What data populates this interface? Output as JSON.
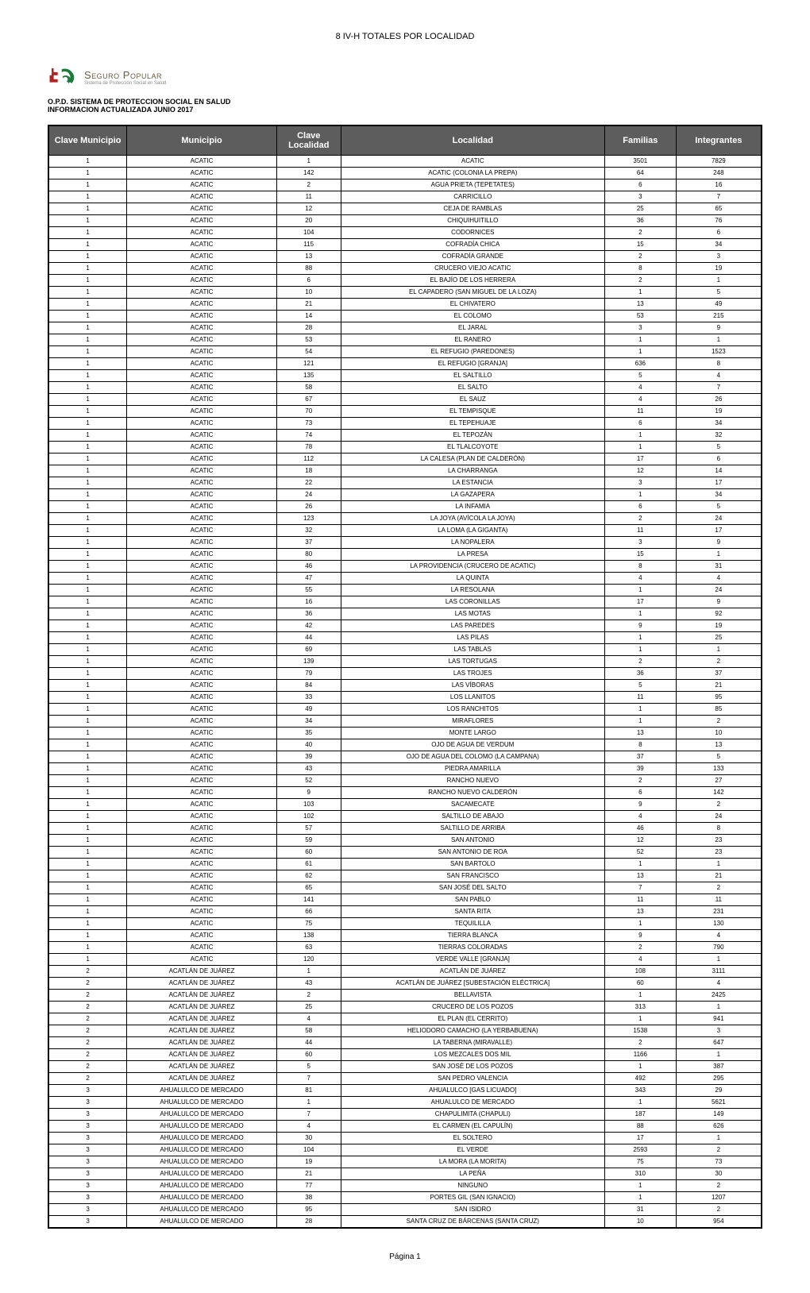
{
  "doc_title": "8 IV-H TOTALES POR LOCALIDAD",
  "logo": {
    "text": "Seguro Popular",
    "subtext": "Sistema de Protección Social en Salud"
  },
  "org": {
    "line1": "O.P.D. SISTEMA DE PROTECCION SOCIAL EN SALUD",
    "line2": "INFORMACION ACTUALIZADA JUNIO 2017"
  },
  "headers": {
    "clave_municipio": "Clave Municipio",
    "municipio": "Municipio",
    "clave_localidad_l1": "Clave",
    "clave_localidad_l2": "Localidad",
    "localidad": "Localidad",
    "familias": "Familias",
    "integrantes": "Integrantes"
  },
  "footer": "Página 1",
  "rows": [
    [
      "1",
      "ACATIC",
      "1",
      "ACATIC",
      "3501",
      "7829"
    ],
    [
      "1",
      "ACATIC",
      "142",
      "ACATIC (COLONIA LA PREPA)",
      "64",
      "248"
    ],
    [
      "1",
      "ACATIC",
      "2",
      "AGUA PRIETA (TEPETATES)",
      "6",
      "16"
    ],
    [
      "1",
      "ACATIC",
      "11",
      "CARRICILLO",
      "3",
      "7"
    ],
    [
      "1",
      "ACATIC",
      "12",
      "CEJA DE RAMBLAS",
      "25",
      "65"
    ],
    [
      "1",
      "ACATIC",
      "20",
      "CHIQUIHUITILLO",
      "36",
      "76"
    ],
    [
      "1",
      "ACATIC",
      "104",
      "CODORNICES",
      "2",
      "6"
    ],
    [
      "1",
      "ACATIC",
      "115",
      "COFRADÍA CHICA",
      "15",
      "34"
    ],
    [
      "1",
      "ACATIC",
      "13",
      "COFRADÍA GRANDE",
      "2",
      "3"
    ],
    [
      "1",
      "ACATIC",
      "88",
      "CRUCERO VIEJO ACATIC",
      "8",
      "19"
    ],
    [
      "1",
      "ACATIC",
      "6",
      "EL BAJÍO DE LOS HERRERA",
      "2",
      "1"
    ],
    [
      "1",
      "ACATIC",
      "10",
      "EL CAPADERO (SAN MIGUEL DE LA LOZA)",
      "1",
      "5"
    ],
    [
      "1",
      "ACATIC",
      "21",
      "EL CHIVATERO",
      "13",
      "49"
    ],
    [
      "1",
      "ACATIC",
      "14",
      "EL COLOMO",
      "53",
      "215"
    ],
    [
      "1",
      "ACATIC",
      "28",
      "EL JARAL",
      "3",
      "9"
    ],
    [
      "1",
      "ACATIC",
      "53",
      "EL RANERO",
      "1",
      "1"
    ],
    [
      "1",
      "ACATIC",
      "54",
      "EL REFUGIO (PAREDONES)",
      "1",
      "1523"
    ],
    [
      "1",
      "ACATIC",
      "121",
      "EL REFUGIO [GRANJA]",
      "636",
      "8"
    ],
    [
      "1",
      "ACATIC",
      "135",
      "EL SALTILLO",
      "5",
      "4"
    ],
    [
      "1",
      "ACATIC",
      "58",
      "EL SALTO",
      "4",
      "7"
    ],
    [
      "1",
      "ACATIC",
      "67",
      "EL SAUZ",
      "4",
      "26"
    ],
    [
      "1",
      "ACATIC",
      "70",
      "EL TEMPISQUE",
      "11",
      "19"
    ],
    [
      "1",
      "ACATIC",
      "73",
      "EL TEPEHUAJE",
      "6",
      "34"
    ],
    [
      "1",
      "ACATIC",
      "74",
      "EL TEPOZÁN",
      "1",
      "32"
    ],
    [
      "1",
      "ACATIC",
      "78",
      "EL TLALCOYOTE",
      "1",
      "5"
    ],
    [
      "1",
      "ACATIC",
      "112",
      "LA CALESA (PLAN DE CALDERÓN)",
      "17",
      "6"
    ],
    [
      "1",
      "ACATIC",
      "18",
      "LA CHARRANGA",
      "12",
      "14"
    ],
    [
      "1",
      "ACATIC",
      "22",
      "LA ESTANCIA",
      "3",
      "17"
    ],
    [
      "1",
      "ACATIC",
      "24",
      "LA GAZAPERA",
      "1",
      "34"
    ],
    [
      "1",
      "ACATIC",
      "26",
      "LA INFAMIA",
      "6",
      "5"
    ],
    [
      "1",
      "ACATIC",
      "123",
      "LA JOYA (AVÍCOLA LA JOYA)",
      "2",
      "24"
    ],
    [
      "1",
      "ACATIC",
      "32",
      "LA LOMA (LA GIGANTA)",
      "11",
      "17"
    ],
    [
      "1",
      "ACATIC",
      "37",
      "LA NOPALERA",
      "3",
      "9"
    ],
    [
      "1",
      "ACATIC",
      "80",
      "LA PRESA",
      "15",
      "1"
    ],
    [
      "1",
      "ACATIC",
      "46",
      "LA PROVIDENCIA (CRUCERO DE ACATIC)",
      "8",
      "31"
    ],
    [
      "1",
      "ACATIC",
      "47",
      "LA QUINTA",
      "4",
      "4"
    ],
    [
      "1",
      "ACATIC",
      "55",
      "LA RESOLANA",
      "1",
      "24"
    ],
    [
      "1",
      "ACATIC",
      "16",
      "LAS CORONILLAS",
      "17",
      "9"
    ],
    [
      "1",
      "ACATIC",
      "36",
      "LAS MOTAS",
      "1",
      "92"
    ],
    [
      "1",
      "ACATIC",
      "42",
      "LAS PAREDES",
      "9",
      "19"
    ],
    [
      "1",
      "ACATIC",
      "44",
      "LAS PILAS",
      "1",
      "25"
    ],
    [
      "1",
      "ACATIC",
      "69",
      "LAS TABLAS",
      "1",
      "1"
    ],
    [
      "1",
      "ACATIC",
      "139",
      "LAS TORTUGAS",
      "2",
      "2"
    ],
    [
      "1",
      "ACATIC",
      "79",
      "LAS TROJES",
      "36",
      "37"
    ],
    [
      "1",
      "ACATIC",
      "84",
      "LAS VÍBORAS",
      "5",
      "21"
    ],
    [
      "1",
      "ACATIC",
      "33",
      "LOS LLANITOS",
      "11",
      "95"
    ],
    [
      "1",
      "ACATIC",
      "49",
      "LOS RANCHITOS",
      "1",
      "85"
    ],
    [
      "1",
      "ACATIC",
      "34",
      "MIRAFLORES",
      "1",
      "2"
    ],
    [
      "1",
      "ACATIC",
      "35",
      "MONTE LARGO",
      "13",
      "10"
    ],
    [
      "1",
      "ACATIC",
      "40",
      "OJO DE AGUA DE VERDUM",
      "8",
      "13"
    ],
    [
      "1",
      "ACATIC",
      "39",
      "OJO DE AGUA DEL COLOMO (LA CAMPANA)",
      "37",
      "5"
    ],
    [
      "1",
      "ACATIC",
      "43",
      "PIEDRA AMARILLA",
      "39",
      "133"
    ],
    [
      "1",
      "ACATIC",
      "52",
      "RANCHO NUEVO",
      "2",
      "27"
    ],
    [
      "1",
      "ACATIC",
      "9",
      "RANCHO NUEVO CALDERÓN",
      "6",
      "142"
    ],
    [
      "1",
      "ACATIC",
      "103",
      "SACAMECATE",
      "9",
      "2"
    ],
    [
      "1",
      "ACATIC",
      "102",
      "SALTILLO DE ABAJO",
      "4",
      "24"
    ],
    [
      "1",
      "ACATIC",
      "57",
      "SALTILLO DE ARRIBA",
      "46",
      "8"
    ],
    [
      "1",
      "ACATIC",
      "59",
      "SAN ANTONIO",
      "12",
      "23"
    ],
    [
      "1",
      "ACATIC",
      "60",
      "SAN ANTONIO DE ROA",
      "52",
      "23"
    ],
    [
      "1",
      "ACATIC",
      "61",
      "SAN BARTOLO",
      "1",
      "1"
    ],
    [
      "1",
      "ACATIC",
      "62",
      "SAN FRANCISCO",
      "13",
      "21"
    ],
    [
      "1",
      "ACATIC",
      "65",
      "SAN JOSÉ DEL SALTO",
      "7",
      "2"
    ],
    [
      "1",
      "ACATIC",
      "141",
      "SAN PABLO",
      "11",
      "11"
    ],
    [
      "1",
      "ACATIC",
      "66",
      "SANTA RITA",
      "13",
      "231"
    ],
    [
      "1",
      "ACATIC",
      "75",
      "TEQUILILLA",
      "1",
      "130"
    ],
    [
      "1",
      "ACATIC",
      "138",
      "TIERRA BLANCA",
      "9",
      "4"
    ],
    [
      "1",
      "ACATIC",
      "63",
      "TIERRAS COLORADAS",
      "2",
      "790"
    ],
    [
      "1",
      "ACATIC",
      "120",
      "VERDE VALLE [GRANJA]",
      "4",
      "1"
    ],
    [
      "2",
      "ACATLÁN DE JUÁREZ",
      "1",
      "ACATLÁN DE JUÁREZ",
      "108",
      "3111"
    ],
    [
      "2",
      "ACATLÁN DE JUÁREZ",
      "43",
      "ACATLÁN DE JUÁREZ [SUBESTACIÓN ELÉCTRICA]",
      "60",
      "4"
    ],
    [
      "2",
      "ACATLÁN DE JUÁREZ",
      "2",
      "BELLAVISTA",
      "1",
      "2425"
    ],
    [
      "2",
      "ACATLÁN DE JUÁREZ",
      "25",
      "CRUCERO DE LOS POZOS",
      "313",
      "1"
    ],
    [
      "2",
      "ACATLÁN DE JUÁREZ",
      "4",
      "EL PLAN (EL CERRITO)",
      "1",
      "941"
    ],
    [
      "2",
      "ACATLÁN DE JUÁREZ",
      "58",
      "HELIODORO CAMACHO (LA YERBABUENA)",
      "1538",
      "3"
    ],
    [
      "2",
      "ACATLÁN DE JUÁREZ",
      "44",
      "LA TABERNA (MIRAVALLE)",
      "2",
      "647"
    ],
    [
      "2",
      "ACATLÁN DE JUÁREZ",
      "60",
      "LOS MEZCALES DOS MIL",
      "1166",
      "1"
    ],
    [
      "2",
      "ACATLÁN DE JUÁREZ",
      "5",
      "SAN JOSÉ DE LOS POZOS",
      "1",
      "387"
    ],
    [
      "2",
      "ACATLÁN DE JUÁREZ",
      "7",
      "SAN PEDRO VALENCIA",
      "492",
      "295"
    ],
    [
      "3",
      "AHUALULCO DE MERCADO",
      "81",
      "AHUALULCO [GAS LICUADO]",
      "343",
      "29"
    ],
    [
      "3",
      "AHUALULCO DE MERCADO",
      "1",
      "AHUALULCO DE MERCADO",
      "1",
      "5621"
    ],
    [
      "3",
      "AHUALULCO DE MERCADO",
      "7",
      "CHAPULIMITA (CHAPULI)",
      "187",
      "149"
    ],
    [
      "3",
      "AHUALULCO DE MERCADO",
      "4",
      "EL CARMEN (EL CAPULÍN)",
      "88",
      "626"
    ],
    [
      "3",
      "AHUALULCO DE MERCADO",
      "30",
      "EL SOLTERO",
      "17",
      "1"
    ],
    [
      "3",
      "AHUALULCO DE MERCADO",
      "104",
      "EL VERDE",
      "2593",
      "2"
    ],
    [
      "3",
      "AHUALULCO DE MERCADO",
      "19",
      "LA MORA (LA MORITA)",
      "75",
      "73"
    ],
    [
      "3",
      "AHUALULCO DE MERCADO",
      "21",
      "LA PEÑA",
      "310",
      "30"
    ],
    [
      "3",
      "AHUALULCO DE MERCADO",
      "77",
      "NINGUNO",
      "1",
      "2"
    ],
    [
      "3",
      "AHUALULCO DE MERCADO",
      "38",
      "PORTES GIL (SAN IGNACIO)",
      "1",
      "1207"
    ],
    [
      "3",
      "AHUALULCO DE MERCADO",
      "95",
      "SAN ISIDRO",
      "31",
      "2"
    ],
    [
      "3",
      "AHUALULCO DE MERCADO",
      "28",
      "SANTA CRUZ DE BÁRCENAS (SANTA CRUZ)",
      "10",
      "954"
    ]
  ]
}
